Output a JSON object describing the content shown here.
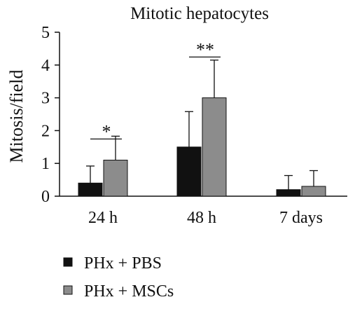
{
  "chart_data": {
    "type": "bar",
    "title": "Mitotic hepatocytes",
    "xlabel": "",
    "ylabel": "Mitosis/field",
    "ylim": [
      0,
      5
    ],
    "yticks": [
      "0",
      "1",
      "2",
      "3",
      "4",
      "5"
    ],
    "categories": [
      "24 h",
      "48 h",
      "7 days"
    ],
    "series": [
      {
        "name": "PHx + PBS",
        "color": "#111111",
        "values": [
          0.4,
          1.5,
          0.2
        ],
        "errors": [
          0.52,
          1.08,
          0.43
        ]
      },
      {
        "name": "PHx + MSCs",
        "color": "#8c8c8c",
        "values": [
          1.1,
          3.0,
          0.3
        ],
        "errors": [
          0.73,
          1.15,
          0.48
        ]
      }
    ],
    "significance": [
      {
        "category": "24 h",
        "label": "*",
        "y": 2.0
      },
      {
        "category": "48 h",
        "label": "**",
        "y": 4.5
      }
    ],
    "grid": false,
    "legend_position": "bottom-left"
  }
}
